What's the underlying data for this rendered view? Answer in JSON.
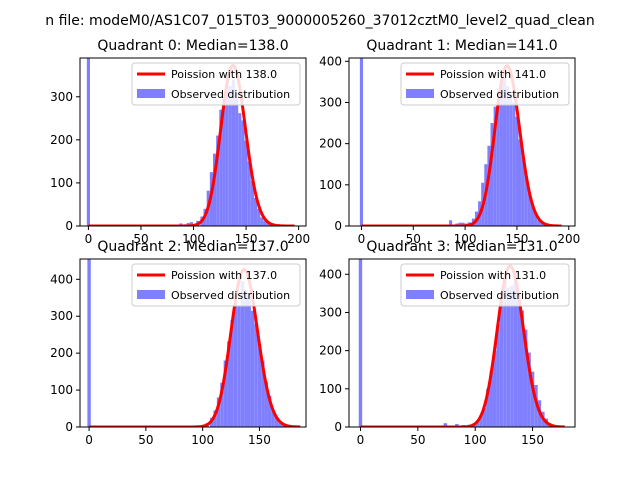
{
  "figure": {
    "suptitle": "n file: modeM0/AS1C07_015T03_9000005260_37012cztM0_level2_quad_clean"
  },
  "colors": {
    "observed": "#8080ff",
    "poisson": "#ff0000",
    "axis": "#000000",
    "background": "#ffffff"
  },
  "chart_data": [
    {
      "type": "bar",
      "title": "Quadrant 0: Median=138.0",
      "xlim": [
        -8,
        207
      ],
      "ylim": [
        0,
        390
      ],
      "xticks": [
        "0",
        "50",
        "100",
        "150",
        "200"
      ],
      "xtick_values": [
        0,
        50,
        100,
        150,
        200
      ],
      "yticks": [
        "0",
        "100",
        "200",
        "300"
      ],
      "ytick_values": [
        0,
        100,
        200,
        300
      ],
      "legend": {
        "placement": "upper-right",
        "poisson_label": "Poission with 138.0",
        "observed_label": "Observed distribution"
      },
      "poisson_mean": 138.0,
      "curve_x_range": [
        0,
        196
      ],
      "zero_bar": {
        "x": 0,
        "value": 390
      },
      "bins": [
        {
          "x": 88,
          "y": 6
        },
        {
          "x": 92,
          "y": 4
        },
        {
          "x": 95,
          "y": 7
        },
        {
          "x": 98,
          "y": 9
        },
        {
          "x": 101,
          "y": 5
        },
        {
          "x": 104,
          "y": 12
        },
        {
          "x": 108,
          "y": 22
        },
        {
          "x": 111,
          "y": 40
        },
        {
          "x": 114,
          "y": 82
        },
        {
          "x": 117,
          "y": 125
        },
        {
          "x": 120,
          "y": 168
        },
        {
          "x": 123,
          "y": 210
        },
        {
          "x": 126,
          "y": 270
        },
        {
          "x": 129,
          "y": 300
        },
        {
          "x": 132,
          "y": 345
        },
        {
          "x": 135,
          "y": 325
        },
        {
          "x": 138,
          "y": 340
        },
        {
          "x": 141,
          "y": 310
        },
        {
          "x": 144,
          "y": 262
        },
        {
          "x": 147,
          "y": 245
        },
        {
          "x": 150,
          "y": 198
        },
        {
          "x": 153,
          "y": 150
        },
        {
          "x": 156,
          "y": 105
        },
        {
          "x": 159,
          "y": 65
        },
        {
          "x": 162,
          "y": 40
        },
        {
          "x": 165,
          "y": 20
        },
        {
          "x": 168,
          "y": 12
        },
        {
          "x": 171,
          "y": 6
        },
        {
          "x": 174,
          "y": 3
        },
        {
          "x": 177,
          "y": 2
        }
      ]
    },
    {
      "type": "bar",
      "title": "Quadrant 1: Median=141.0",
      "xlim": [
        -12,
        206
      ],
      "ylim": [
        0,
        408
      ],
      "xticks": [
        "0",
        "50",
        "100",
        "150",
        "200"
      ],
      "xtick_values": [
        0,
        50,
        100,
        150,
        200
      ],
      "yticks": [
        "0",
        "100",
        "200",
        "300",
        "400"
      ],
      "ytick_values": [
        0,
        100,
        200,
        300,
        400
      ],
      "legend": {
        "placement": "upper-right",
        "poisson_label": "Poission with 141.0",
        "observed_label": "Observed distribution"
      },
      "poisson_mean": 141.0,
      "curve_x_range": [
        0,
        193
      ],
      "zero_bar": {
        "x": 0,
        "value": 408
      },
      "bins": [
        {
          "x": 86,
          "y": 14
        },
        {
          "x": 92,
          "y": 6
        },
        {
          "x": 95,
          "y": 8
        },
        {
          "x": 98,
          "y": 8
        },
        {
          "x": 101,
          "y": 6
        },
        {
          "x": 104,
          "y": 9
        },
        {
          "x": 108,
          "y": 18
        },
        {
          "x": 111,
          "y": 35
        },
        {
          "x": 114,
          "y": 60
        },
        {
          "x": 117,
          "y": 105
        },
        {
          "x": 120,
          "y": 150
        },
        {
          "x": 123,
          "y": 195
        },
        {
          "x": 126,
          "y": 250
        },
        {
          "x": 129,
          "y": 290
        },
        {
          "x": 132,
          "y": 330
        },
        {
          "x": 135,
          "y": 345
        },
        {
          "x": 138,
          "y": 360
        },
        {
          "x": 141,
          "y": 340
        },
        {
          "x": 144,
          "y": 320
        },
        {
          "x": 147,
          "y": 300
        },
        {
          "x": 150,
          "y": 265
        },
        {
          "x": 153,
          "y": 210
        },
        {
          "x": 156,
          "y": 168
        },
        {
          "x": 159,
          "y": 120
        },
        {
          "x": 162,
          "y": 80
        },
        {
          "x": 165,
          "y": 50
        },
        {
          "x": 168,
          "y": 30
        },
        {
          "x": 171,
          "y": 15
        },
        {
          "x": 174,
          "y": 8
        },
        {
          "x": 177,
          "y": 4
        }
      ]
    },
    {
      "type": "bar",
      "title": "Quadrant 2: Median=137.0",
      "xlim": [
        -8,
        191
      ],
      "ylim": [
        0,
        455
      ],
      "xticks": [
        "0",
        "50",
        "100",
        "150"
      ],
      "xtick_values": [
        0,
        50,
        100,
        150
      ],
      "yticks": [
        "0",
        "100",
        "200",
        "300",
        "400"
      ],
      "ytick_values": [
        0,
        100,
        200,
        300,
        400
      ],
      "legend": {
        "placement": "upper-right",
        "poisson_label": "Poission with 137.0",
        "observed_label": "Observed distribution"
      },
      "poisson_mean": 137.0,
      "curve_x_range": [
        0,
        186
      ],
      "zero_bar": {
        "x": 0,
        "value": 455
      },
      "bins": [
        {
          "x": 72,
          "y": 2
        },
        {
          "x": 80,
          "y": 3
        },
        {
          "x": 90,
          "y": 4
        },
        {
          "x": 100,
          "y": 5
        },
        {
          "x": 104,
          "y": 10
        },
        {
          "x": 108,
          "y": 25
        },
        {
          "x": 111,
          "y": 45
        },
        {
          "x": 114,
          "y": 80
        },
        {
          "x": 117,
          "y": 120
        },
        {
          "x": 120,
          "y": 180
        },
        {
          "x": 123,
          "y": 232
        },
        {
          "x": 126,
          "y": 290
        },
        {
          "x": 129,
          "y": 340
        },
        {
          "x": 132,
          "y": 330
        },
        {
          "x": 135,
          "y": 395
        },
        {
          "x": 138,
          "y": 370
        },
        {
          "x": 141,
          "y": 355
        },
        {
          "x": 144,
          "y": 315
        },
        {
          "x": 147,
          "y": 280
        },
        {
          "x": 150,
          "y": 225
        },
        {
          "x": 153,
          "y": 180
        },
        {
          "x": 156,
          "y": 122
        },
        {
          "x": 159,
          "y": 85
        },
        {
          "x": 162,
          "y": 45
        },
        {
          "x": 165,
          "y": 25
        },
        {
          "x": 168,
          "y": 12
        },
        {
          "x": 171,
          "y": 5
        }
      ]
    },
    {
      "type": "bar",
      "title": "Quadrant 3: Median=131.0",
      "xlim": [
        -10,
        187
      ],
      "ylim": [
        0,
        440
      ],
      "xticks": [
        "0",
        "50",
        "100",
        "150"
      ],
      "xtick_values": [
        0,
        50,
        100,
        150
      ],
      "yticks": [
        "0",
        "100",
        "200",
        "300",
        "400"
      ],
      "ytick_values": [
        0,
        100,
        200,
        300,
        400
      ],
      "legend": {
        "placement": "upper-right",
        "poisson_label": "Poission with 131.0",
        "observed_label": "Observed distribution"
      },
      "poisson_mean": 131.0,
      "curve_x_range": [
        0,
        178
      ],
      "zero_bar": {
        "x": 0,
        "value": 440
      },
      "bins": [
        {
          "x": 74,
          "y": 10
        },
        {
          "x": 84,
          "y": 8
        },
        {
          "x": 90,
          "y": 5
        },
        {
          "x": 95,
          "y": 6
        },
        {
          "x": 99,
          "y": 9
        },
        {
          "x": 102,
          "y": 15
        },
        {
          "x": 105,
          "y": 30
        },
        {
          "x": 108,
          "y": 50
        },
        {
          "x": 111,
          "y": 100
        },
        {
          "x": 114,
          "y": 145
        },
        {
          "x": 117,
          "y": 200
        },
        {
          "x": 120,
          "y": 270
        },
        {
          "x": 123,
          "y": 330
        },
        {
          "x": 126,
          "y": 390
        },
        {
          "x": 129,
          "y": 365
        },
        {
          "x": 132,
          "y": 370
        },
        {
          "x": 135,
          "y": 385
        },
        {
          "x": 138,
          "y": 340
        },
        {
          "x": 141,
          "y": 305
        },
        {
          "x": 144,
          "y": 255
        },
        {
          "x": 147,
          "y": 195
        },
        {
          "x": 150,
          "y": 145
        },
        {
          "x": 153,
          "y": 110
        },
        {
          "x": 156,
          "y": 70
        },
        {
          "x": 159,
          "y": 40
        },
        {
          "x": 162,
          "y": 22
        },
        {
          "x": 165,
          "y": 10
        },
        {
          "x": 168,
          "y": 5
        }
      ]
    }
  ]
}
